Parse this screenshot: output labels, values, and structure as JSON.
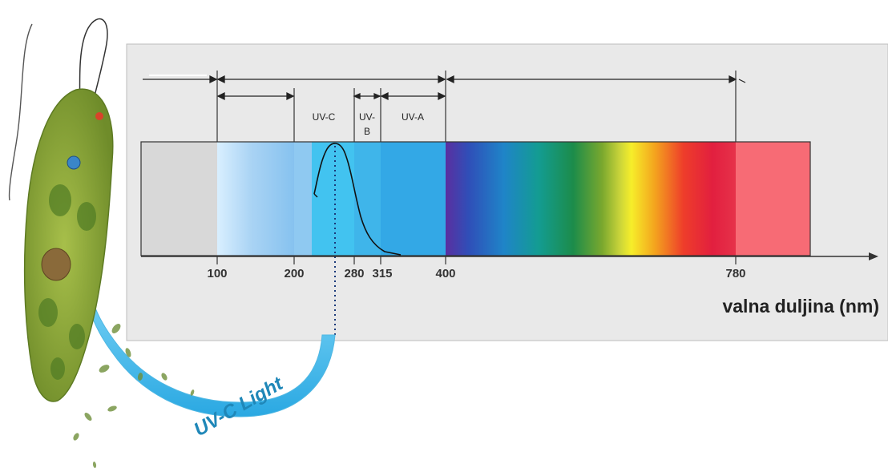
{
  "spectrum": {
    "tick_labels": [
      "100",
      "200",
      "280",
      "315",
      "400",
      "780"
    ],
    "band_labels": {
      "uvc": "UV-C",
      "uvb_line1": "UV-",
      "uvb_line2": "B",
      "uva": "UV-A"
    },
    "axis_label": "valna duljina (nm)"
  },
  "arrow_label": "UV-C Light",
  "colors": {
    "panel": "#e9e9e9",
    "far_uv": "#d8d8d8",
    "uv_light": "#d6ecfb",
    "uvc": "#42c3f0",
    "ir": "#f76b75",
    "arrow": "#5ec8ee",
    "arrow_text": "#1f87b8",
    "organism": "#8da63a"
  },
  "icons": [
    "euglena-organism-illustration",
    "uv-c-arrow"
  ]
}
